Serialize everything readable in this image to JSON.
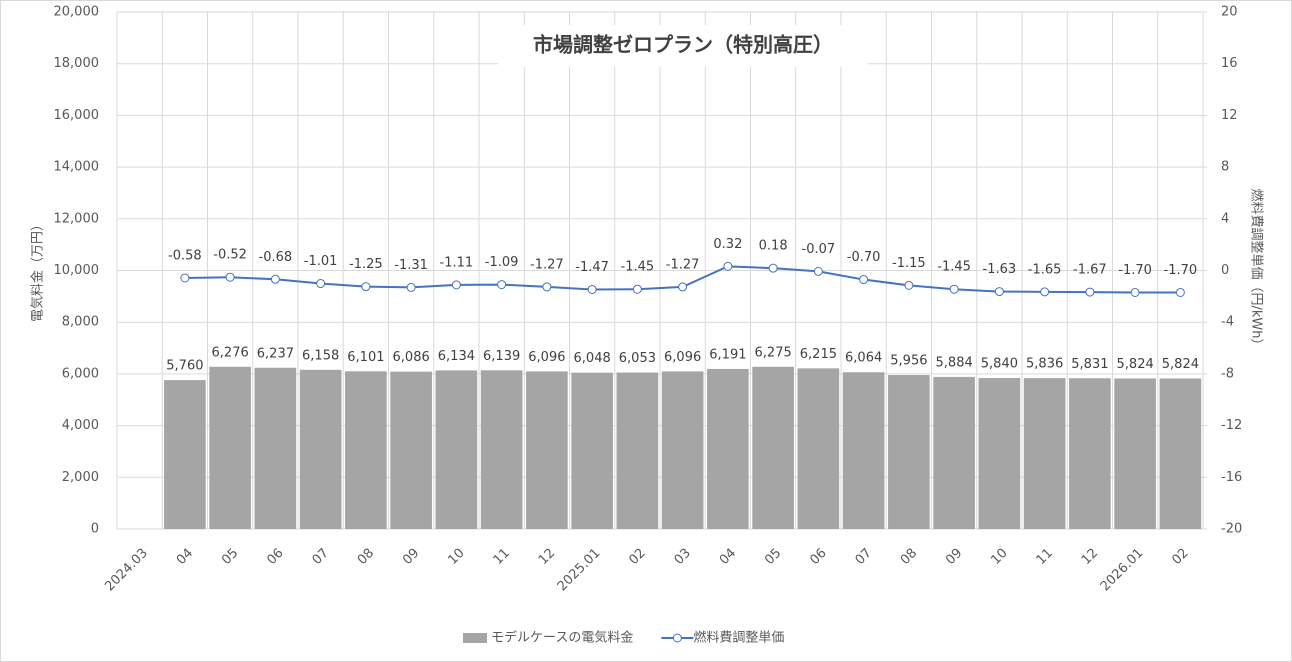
{
  "chart_data": {
    "type": "combo",
    "title": "市場調整ゼロプラン（特別高圧）",
    "ylabel": "電気料金（万円）",
    "y2label": "燃料費調整単価（円/kWh）",
    "categories": [
      "2024.03",
      "04",
      "05",
      "06",
      "07",
      "08",
      "09",
      "10",
      "11",
      "12",
      "2025.01",
      "02",
      "03",
      "04",
      "05",
      "06",
      "07",
      "08",
      "09",
      "10",
      "11",
      "12",
      "2026.01",
      "02"
    ],
    "series": [
      {
        "name": "モデルケースの電気料金",
        "type": "bar",
        "color": "#a5a5a5",
        "values": [
          null,
          5760,
          6276,
          6237,
          6158,
          6101,
          6086,
          6134,
          6139,
          6096,
          6048,
          6053,
          6096,
          6191,
          6275,
          6215,
          6064,
          5956,
          5884,
          5840,
          5836,
          5831,
          5824,
          5824
        ],
        "value_labels": [
          null,
          "5,760",
          "6,276",
          "6,237",
          "6,158",
          "6,101",
          "6,086",
          "6,134",
          "6,139",
          "6,096",
          "6,048",
          "6,053",
          "6,096",
          "6,191",
          "6,275",
          "6,215",
          "6,064",
          "5,956",
          "5,884",
          "5,840",
          "5,836",
          "5,831",
          "5,824",
          "5,824"
        ]
      },
      {
        "name": "燃料費調整単価",
        "type": "line",
        "axis": "y2",
        "color": "#4472c4",
        "values": [
          null,
          -0.58,
          -0.52,
          -0.68,
          -1.01,
          -1.25,
          -1.31,
          -1.11,
          -1.09,
          -1.27,
          -1.47,
          -1.45,
          -1.27,
          0.32,
          0.18,
          -0.07,
          -0.7,
          -1.15,
          -1.45,
          -1.63,
          -1.65,
          -1.67,
          -1.7,
          -1.7
        ],
        "value_labels": [
          null,
          "-0.58",
          "-0.52",
          "-0.68",
          "-1.01",
          "-1.25",
          "-1.31",
          "-1.11",
          "-1.09",
          "-1.27",
          "-1.47",
          "-1.45",
          "-1.27",
          "0.32",
          "0.18",
          "-0.07",
          "-0.70",
          "-1.15",
          "-1.45",
          "-1.63",
          "-1.65",
          "-1.67",
          "-1.70",
          "-1.70"
        ]
      }
    ],
    "ylim": [
      0,
      20000
    ],
    "yticks": [
      0,
      {
        "value": 2000,
        "label": "2,000"
      },
      {
        "value": 4000,
        "label": "4,000"
      },
      {
        "value": 6000,
        "label": "6,000"
      },
      {
        "value": 8000,
        "label": "8,000"
      },
      {
        "value": 10000,
        "label": "10,000"
      },
      {
        "value": 12000,
        "label": "12,000"
      },
      {
        "value": 14000,
        "label": "14,000"
      },
      {
        "value": 16000,
        "label": "16,000"
      },
      {
        "value": 18000,
        "label": "18,000"
      },
      {
        "value": 20000,
        "label": "20,000"
      }
    ],
    "y2lim": [
      -20,
      20
    ],
    "y2ticks": [
      -20,
      -16,
      -12,
      -8,
      -4,
      0,
      4,
      8,
      12,
      16,
      20
    ],
    "grid": true,
    "legend": "bottom"
  }
}
